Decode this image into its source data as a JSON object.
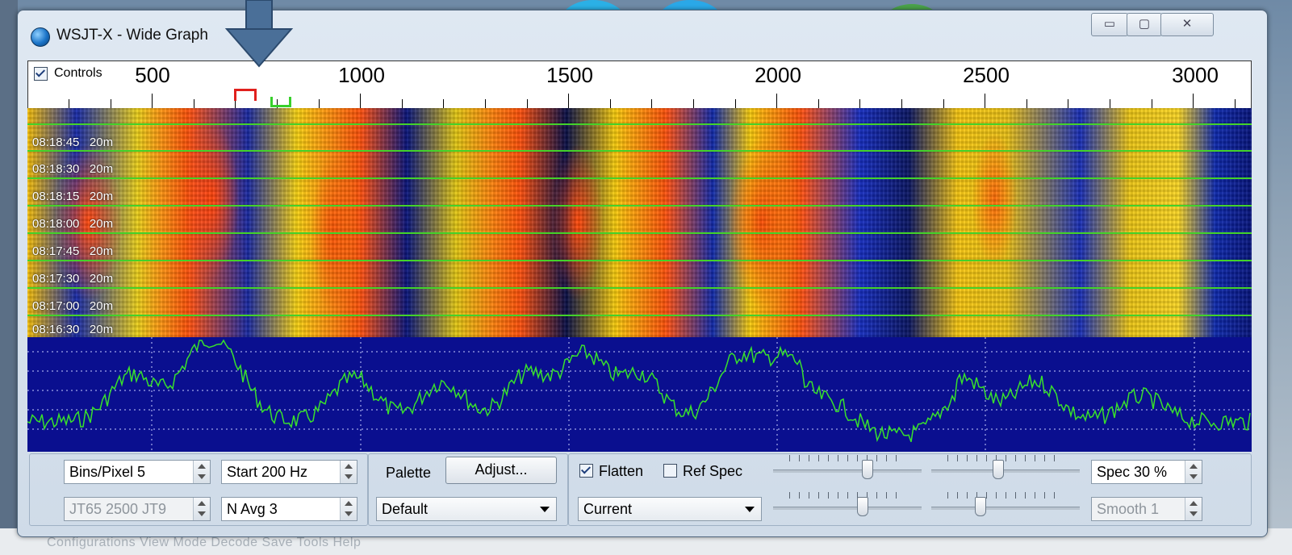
{
  "window": {
    "title": "WSJT-X - Wide Graph",
    "minimize_glyph": "▭",
    "maximize_glyph": "▢",
    "close_glyph": "✕"
  },
  "ruler": {
    "controls_label": "Controls",
    "controls_checked": true,
    "freq_labels": [
      "500",
      "1000",
      "1500",
      "2000",
      "2500",
      "3000"
    ]
  },
  "waterfall": {
    "timestamps": [
      "08:18:45   20m",
      "08:18:30   20m",
      "08:18:15   20m",
      "08:18:00   20m",
      "08:17:45   20m",
      "08:17:30   20m",
      "08:17:00   20m",
      "08:16:30   20m"
    ],
    "colors": {
      "low": "#0b1f8a",
      "mid": "#f2cc24",
      "high": "#ff5a18",
      "separator": "#43d22a"
    }
  },
  "spectrum": {
    "trace_color": "#38e02c",
    "background": "#0a0f8f"
  },
  "controls": {
    "bins_per_pixel": "Bins/Pixel  5",
    "start_freq": "Start 200 Hz",
    "mode_split": "JT65  2500  JT9",
    "n_avg": "N Avg 3",
    "palette_label": "Palette",
    "adjust_button": "Adjust...",
    "palette_value": "Default",
    "flatten_label": "Flatten",
    "flatten_checked": true,
    "ref_spec_label": "Ref Spec",
    "ref_spec_checked": false,
    "spectrum_mode": "Current",
    "spec_percent": "Spec 30 %",
    "smooth": "Smooth  1"
  },
  "desktop": {
    "menu_text": "Configurations  View  Mode  Decode  Save  Tools  Help"
  }
}
